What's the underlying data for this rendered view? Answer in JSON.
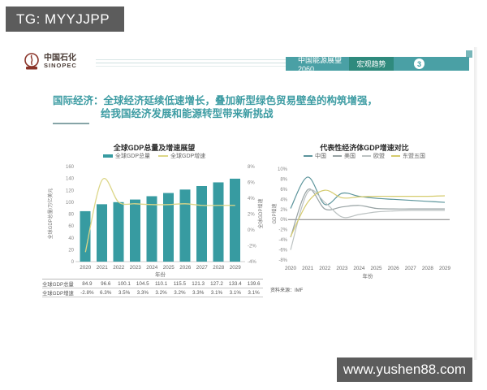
{
  "overlay": {
    "tg_label": "TG: MYYJJPP",
    "site_label": "www.yushen88.com"
  },
  "header": {
    "logo": {
      "cn": "中国石化",
      "en": "SINOPEC"
    },
    "bar": {
      "title": "中国能源展望 2060",
      "section": "宏观趋势",
      "page_number": "3"
    }
  },
  "headline": {
    "line1": "国际经济：全球经济延续低速增长，叠加新型绿色贸易壁垒的构筑增强，",
    "line2": "给我国经济发展和能源转型带来新挑战"
  },
  "source_note": "资料来源：IMF",
  "colors": {
    "accent_teal": "#4aa0a5",
    "section_green": "#2f8a7d",
    "headline_teal": "#3d9ca3",
    "bar_teal": "#379ba1",
    "growth_yellow": "#dcd687",
    "watermark_gray": "#5c5c5c"
  },
  "chart_data": [
    {
      "type": "bar",
      "title": "全球GDP总量及增速展望",
      "categories": [
        "2020",
        "2021",
        "2022",
        "2023",
        "2024",
        "2025",
        "2026",
        "2027",
        "2028",
        "2029"
      ],
      "xlabel": "年份",
      "left_axis": {
        "label": "全球GDP总量/万亿美元",
        "min": 0,
        "max": 160,
        "step": 20,
        "suffix": ""
      },
      "right_axis": {
        "label": "全球GDP增速",
        "min": -4,
        "max": 8,
        "step": 2,
        "suffix": "%"
      },
      "series": [
        {
          "name": "全球GDP总量",
          "kind": "bar",
          "axis": "left",
          "color": "#379ba1",
          "values": [
            84.9,
            96.6,
            100.1,
            104.5,
            110.1,
            115.5,
            121.3,
            127.2,
            133.4,
            139.6
          ]
        },
        {
          "name": "全球GDP增速",
          "kind": "line",
          "axis": "right",
          "color": "#dcd687",
          "values": [
            -2.8,
            6.3,
            3.5,
            3.3,
            3.2,
            3.2,
            3.3,
            3.1,
            3.1,
            3.1
          ]
        }
      ],
      "table": {
        "rows": [
          {
            "label": "全球GDP总量",
            "values": [
              "84.9",
              "96.6",
              "100.1",
              "104.5",
              "110.1",
              "115.5",
              "121.3",
              "127.2",
              "133.4",
              "139.6"
            ]
          },
          {
            "label": "全球GDP增速",
            "values": [
              "-2.8%",
              "6.3%",
              "3.5%",
              "3.3%",
              "3.2%",
              "3.2%",
              "3.3%",
              "3.1%",
              "3.1%",
              "3.1%"
            ]
          }
        ]
      }
    },
    {
      "type": "line",
      "title": "代表性经济体GDP增速对比",
      "categories": [
        "2020",
        "2021",
        "2022",
        "2023",
        "2024",
        "2025",
        "2026",
        "2027",
        "2028",
        "2029"
      ],
      "xlabel": "年份",
      "yaxis": {
        "label": "GDP增速",
        "min": -8,
        "max": 10,
        "step": 2,
        "suffix": "%"
      },
      "series": [
        {
          "name": "中国",
          "color": "#5b949b",
          "values": [
            2.2,
            8.4,
            3.0,
            5.2,
            4.6,
            4.2,
            4.0,
            3.8,
            3.6,
            3.4
          ]
        },
        {
          "name": "美国",
          "color": "#97a2a3",
          "values": [
            -3.5,
            5.9,
            2.1,
            2.5,
            2.8,
            2.2,
            2.1,
            2.1,
            2.1,
            2.1
          ]
        },
        {
          "name": "欧盟",
          "color": "#bcc2c2",
          "values": [
            -6.0,
            5.4,
            3.4,
            0.5,
            1.0,
            1.5,
            1.7,
            1.8,
            1.8,
            1.8
          ]
        },
        {
          "name": "东盟五国",
          "color": "#d5cb6d",
          "values": [
            -3.4,
            3.4,
            5.8,
            4.3,
            4.5,
            4.6,
            4.6,
            4.6,
            4.6,
            4.7
          ]
        }
      ]
    }
  ]
}
